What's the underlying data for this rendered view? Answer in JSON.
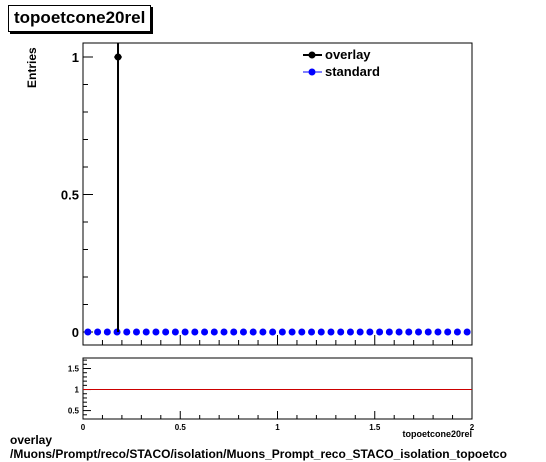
{
  "title": "topoetcone20rel",
  "footer": {
    "line1": "overlay",
    "line2": "/Muons/Prompt/reco/STACO/isolation/Muons_Prompt_reco_STACO_isolation_topoetco"
  },
  "colors": {
    "overlay": "#000000",
    "standard": "#0000ff",
    "ratio_line": "#cc0000"
  },
  "chart_data": [
    {
      "type": "scatter",
      "title": "topoetcone20rel",
      "xlabel": "topoetcone20rel",
      "ylabel": "Entries",
      "xlim": [
        0,
        2
      ],
      "ylim": [
        0,
        1.1
      ],
      "yticks": [
        0,
        0.5,
        1
      ],
      "ytick_labels": [
        "0",
        "0.5",
        "1"
      ],
      "grid": false,
      "legend_position": "top-right",
      "series": [
        {
          "name": "overlay",
          "color": "#000000",
          "points": [
            {
              "x": 0.18,
              "y": 1
            }
          ],
          "spike": true
        },
        {
          "name": "standard",
          "color": "#0000ff",
          "x": [
            0.025,
            0.075,
            0.125,
            0.175,
            0.225,
            0.275,
            0.325,
            0.375,
            0.425,
            0.475,
            0.525,
            0.575,
            0.625,
            0.675,
            0.725,
            0.775,
            0.825,
            0.875,
            0.925,
            0.975,
            1.025,
            1.075,
            1.125,
            1.175,
            1.225,
            1.275,
            1.325,
            1.375,
            1.425,
            1.475,
            1.525,
            1.575,
            1.625,
            1.675,
            1.725,
            1.775,
            1.825,
            1.875,
            1.925,
            1.975
          ],
          "y": [
            0,
            0,
            0,
            0,
            0,
            0,
            0,
            0,
            0,
            0,
            0,
            0,
            0,
            0,
            0,
            0,
            0,
            0,
            0,
            0,
            0,
            0,
            0,
            0,
            0,
            0,
            0,
            0,
            0,
            0,
            0,
            0,
            0,
            0,
            0,
            0,
            0,
            0,
            0,
            0
          ]
        }
      ]
    },
    {
      "type": "line",
      "xlabel": "topoetcone20rel",
      "xlim": [
        0,
        2
      ],
      "ylim": [
        0.3,
        1.75
      ],
      "xticks": [
        0,
        0.5,
        1,
        1.5,
        2
      ],
      "xtick_labels": [
        "0",
        "0.5",
        "1",
        "1.5",
        "2"
      ],
      "yticks": [
        0.5,
        1,
        1.5
      ],
      "ytick_labels": [
        "0.5",
        "1",
        "1.5"
      ],
      "reference_line": 1
    }
  ]
}
